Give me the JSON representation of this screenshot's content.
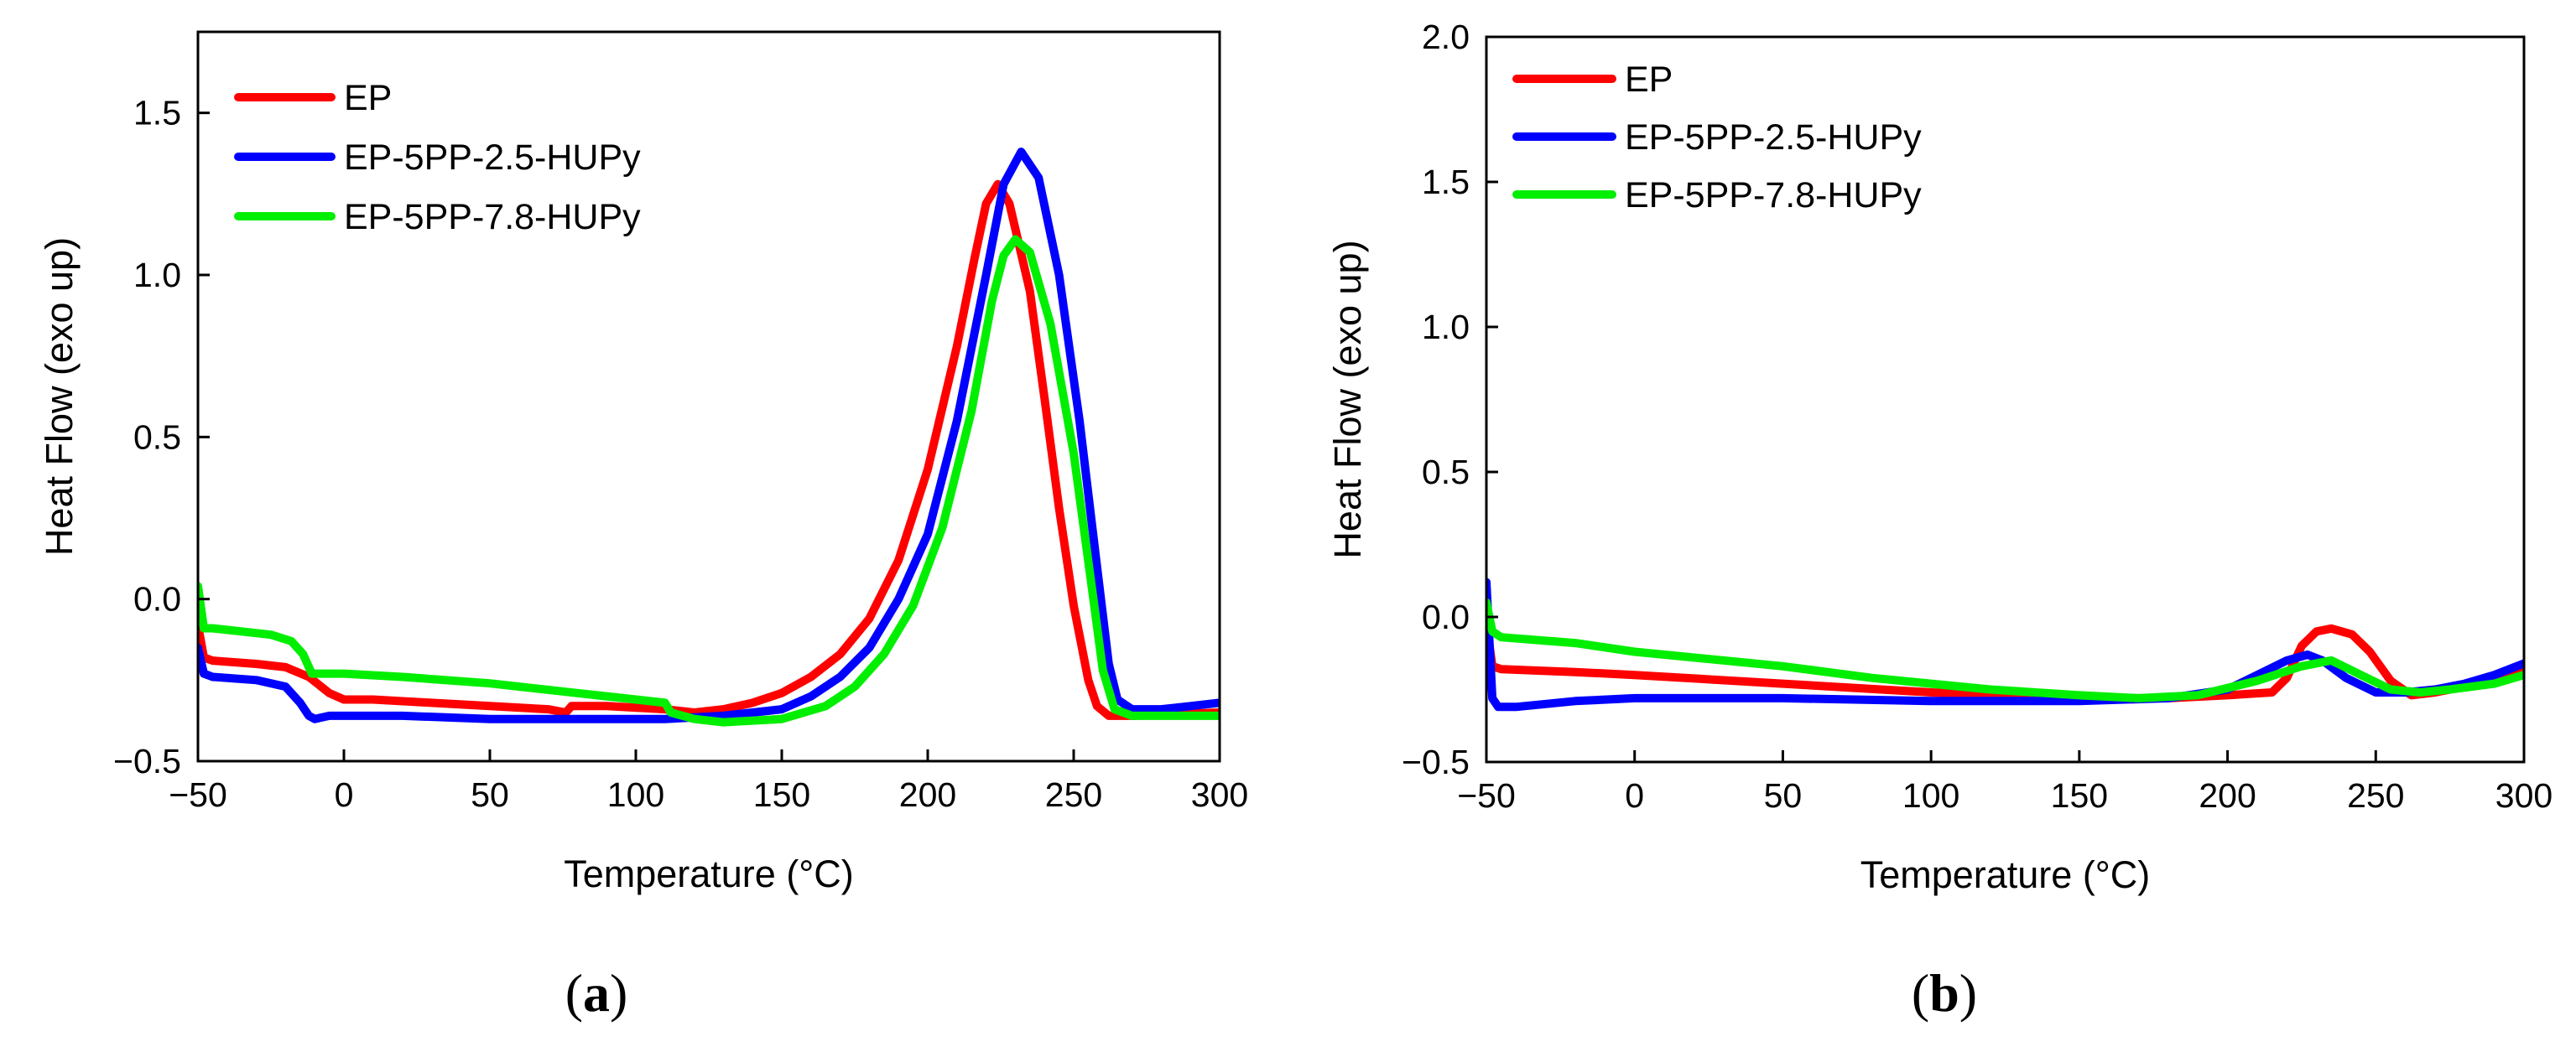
{
  "chart_data": [
    {
      "type": "line",
      "panel_label_open": "(",
      "panel_label_letter": "a",
      "panel_label_close": ")",
      "xlabel": "Temperature (°C)",
      "ylabel": "Heat Flow (exo up)",
      "xlim": [
        -50,
        300
      ],
      "ylim": [
        -0.5,
        1.75
      ],
      "xticks": [
        -50,
        0,
        50,
        100,
        150,
        200,
        250,
        300
      ],
      "xtick_labels": [
        "−50",
        "0",
        "50",
        "100",
        "150",
        "200",
        "250",
        "300"
      ],
      "yticks": [
        -0.5,
        0.0,
        0.5,
        1.0,
        1.5
      ],
      "ytick_labels": [
        "−0.5",
        "0.0",
        "0.5",
        "1.0",
        "1.5"
      ],
      "legend_position": "top-left",
      "series": [
        {
          "name": "EP",
          "color": "#ff0000",
          "points": [
            [
              -50,
              -0.08
            ],
            [
              -48,
              -0.18
            ],
            [
              -45,
              -0.19
            ],
            [
              -30,
              -0.2
            ],
            [
              -20,
              -0.21
            ],
            [
              -12,
              -0.24
            ],
            [
              -5,
              -0.29
            ],
            [
              0,
              -0.31
            ],
            [
              10,
              -0.31
            ],
            [
              30,
              -0.32
            ],
            [
              50,
              -0.33
            ],
            [
              70,
              -0.34
            ],
            [
              76,
              -0.35
            ],
            [
              78,
              -0.33
            ],
            [
              90,
              -0.33
            ],
            [
              110,
              -0.34
            ],
            [
              120,
              -0.35
            ],
            [
              130,
              -0.34
            ],
            [
              140,
              -0.32
            ],
            [
              150,
              -0.29
            ],
            [
              160,
              -0.24
            ],
            [
              170,
              -0.17
            ],
            [
              180,
              -0.06
            ],
            [
              190,
              0.12
            ],
            [
              200,
              0.4
            ],
            [
              210,
              0.78
            ],
            [
              216,
              1.05
            ],
            [
              220,
              1.22
            ],
            [
              224,
              1.28
            ],
            [
              228,
              1.22
            ],
            [
              235,
              0.95
            ],
            [
              240,
              0.62
            ],
            [
              245,
              0.28
            ],
            [
              250,
              -0.02
            ],
            [
              255,
              -0.25
            ],
            [
              258,
              -0.33
            ],
            [
              262,
              -0.36
            ],
            [
              270,
              -0.36
            ],
            [
              300,
              -0.35
            ]
          ]
        },
        {
          "name": "EP-5PP-2.5-HUPy",
          "color": "#0000ff",
          "points": [
            [
              -50,
              -0.15
            ],
            [
              -48,
              -0.23
            ],
            [
              -45,
              -0.24
            ],
            [
              -30,
              -0.25
            ],
            [
              -20,
              -0.27
            ],
            [
              -15,
              -0.32
            ],
            [
              -12,
              -0.36
            ],
            [
              -10,
              -0.37
            ],
            [
              -5,
              -0.36
            ],
            [
              0,
              -0.36
            ],
            [
              20,
              -0.36
            ],
            [
              50,
              -0.37
            ],
            [
              80,
              -0.37
            ],
            [
              110,
              -0.37
            ],
            [
              130,
              -0.36
            ],
            [
              150,
              -0.34
            ],
            [
              160,
              -0.3
            ],
            [
              170,
              -0.24
            ],
            [
              180,
              -0.15
            ],
            [
              190,
              0.0
            ],
            [
              200,
              0.2
            ],
            [
              210,
              0.55
            ],
            [
              220,
              1.0
            ],
            [
              226,
              1.28
            ],
            [
              232,
              1.38
            ],
            [
              238,
              1.3
            ],
            [
              245,
              1.0
            ],
            [
              252,
              0.55
            ],
            [
              258,
              0.1
            ],
            [
              262,
              -0.2
            ],
            [
              265,
              -0.31
            ],
            [
              270,
              -0.34
            ],
            [
              280,
              -0.34
            ],
            [
              290,
              -0.33
            ],
            [
              300,
              -0.32
            ]
          ]
        },
        {
          "name": "EP-5PP-7.8-HUPy",
          "color": "#00ee00",
          "points": [
            [
              -50,
              0.04
            ],
            [
              -48,
              -0.09
            ],
            [
              -45,
              -0.09
            ],
            [
              -35,
              -0.1
            ],
            [
              -25,
              -0.11
            ],
            [
              -18,
              -0.13
            ],
            [
              -14,
              -0.17
            ],
            [
              -11,
              -0.23
            ],
            [
              -8,
              -0.23
            ],
            [
              0,
              -0.23
            ],
            [
              20,
              -0.24
            ],
            [
              50,
              -0.26
            ],
            [
              80,
              -0.29
            ],
            [
              100,
              -0.31
            ],
            [
              110,
              -0.32
            ],
            [
              112,
              -0.35
            ],
            [
              120,
              -0.37
            ],
            [
              130,
              -0.38
            ],
            [
              150,
              -0.37
            ],
            [
              165,
              -0.33
            ],
            [
              175,
              -0.27
            ],
            [
              185,
              -0.17
            ],
            [
              195,
              -0.02
            ],
            [
              205,
              0.22
            ],
            [
              215,
              0.58
            ],
            [
              222,
              0.92
            ],
            [
              226,
              1.06
            ],
            [
              230,
              1.11
            ],
            [
              235,
              1.07
            ],
            [
              242,
              0.85
            ],
            [
              250,
              0.45
            ],
            [
              256,
              0.05
            ],
            [
              260,
              -0.22
            ],
            [
              264,
              -0.34
            ],
            [
              270,
              -0.36
            ],
            [
              300,
              -0.36
            ]
          ]
        }
      ]
    },
    {
      "type": "line",
      "panel_label_open": "(",
      "panel_label_letter": "b",
      "panel_label_close": ")",
      "xlabel": "Temperature (°C)",
      "ylabel": "Heat Flow (exo up)",
      "xlim": [
        -50,
        300
      ],
      "ylim": [
        -0.5,
        2.0
      ],
      "xticks": [
        -50,
        0,
        50,
        100,
        150,
        200,
        250,
        300
      ],
      "xtick_labels": [
        "−50",
        "0",
        "50",
        "100",
        "150",
        "200",
        "250",
        "300"
      ],
      "yticks": [
        -0.5,
        0.0,
        0.5,
        1.0,
        1.5,
        2.0
      ],
      "ytick_labels": [
        "−0.5",
        "0.0",
        "0.5",
        "1.0",
        "1.5",
        "2.0"
      ],
      "legend_position": "top-left",
      "series": [
        {
          "name": "EP",
          "color": "#ff0000",
          "points": [
            [
              -50,
              -0.02
            ],
            [
              -48,
              -0.17
            ],
            [
              -45,
              -0.18
            ],
            [
              -20,
              -0.19
            ],
            [
              0,
              -0.2
            ],
            [
              50,
              -0.23
            ],
            [
              100,
              -0.26
            ],
            [
              150,
              -0.28
            ],
            [
              180,
              -0.28
            ],
            [
              200,
              -0.27
            ],
            [
              215,
              -0.26
            ],
            [
              220,
              -0.21
            ],
            [
              225,
              -0.1
            ],
            [
              230,
              -0.05
            ],
            [
              235,
              -0.04
            ],
            [
              242,
              -0.06
            ],
            [
              248,
              -0.12
            ],
            [
              255,
              -0.22
            ],
            [
              262,
              -0.27
            ],
            [
              270,
              -0.26
            ],
            [
              280,
              -0.24
            ],
            [
              290,
              -0.22
            ],
            [
              300,
              -0.19
            ]
          ]
        },
        {
          "name": "EP-5PP-2.5-HUPy",
          "color": "#0000ff",
          "points": [
            [
              -50,
              0.12
            ],
            [
              -48,
              -0.28
            ],
            [
              -46,
              -0.31
            ],
            [
              -40,
              -0.31
            ],
            [
              -20,
              -0.29
            ],
            [
              0,
              -0.28
            ],
            [
              50,
              -0.28
            ],
            [
              100,
              -0.29
            ],
            [
              150,
              -0.29
            ],
            [
              180,
              -0.28
            ],
            [
              200,
              -0.25
            ],
            [
              210,
              -0.2
            ],
            [
              220,
              -0.15
            ],
            [
              227,
              -0.13
            ],
            [
              232,
              -0.15
            ],
            [
              240,
              -0.21
            ],
            [
              250,
              -0.26
            ],
            [
              260,
              -0.26
            ],
            [
              270,
              -0.25
            ],
            [
              280,
              -0.23
            ],
            [
              290,
              -0.2
            ],
            [
              300,
              -0.16
            ]
          ]
        },
        {
          "name": "EP-5PP-7.8-HUPy",
          "color": "#00ee00",
          "points": [
            [
              -50,
              0.05
            ],
            [
              -48,
              -0.05
            ],
            [
              -45,
              -0.07
            ],
            [
              -20,
              -0.09
            ],
            [
              0,
              -0.12
            ],
            [
              50,
              -0.17
            ],
            [
              80,
              -0.21
            ],
            [
              100,
              -0.23
            ],
            [
              120,
              -0.25
            ],
            [
              150,
              -0.27
            ],
            [
              170,
              -0.28
            ],
            [
              190,
              -0.27
            ],
            [
              210,
              -0.22
            ],
            [
              225,
              -0.17
            ],
            [
              235,
              -0.15
            ],
            [
              245,
              -0.2
            ],
            [
              255,
              -0.25
            ],
            [
              265,
              -0.26
            ],
            [
              275,
              -0.25
            ],
            [
              290,
              -0.23
            ],
            [
              300,
              -0.2
            ]
          ]
        }
      ]
    }
  ]
}
